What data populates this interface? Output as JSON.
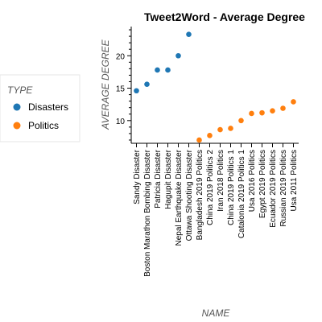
{
  "chart_data": {
    "type": "scatter",
    "title": "Tweet2Word - Average Degree",
    "xlabel": "NAME",
    "ylabel": "AVERAGE DEGREE",
    "ylim": [
      6.5,
      24.5
    ],
    "yticks": [
      10,
      15,
      20
    ],
    "grid": false,
    "legend": {
      "title": "TYPE",
      "placement": "left"
    },
    "categories": [
      "Sandy Disaster",
      "Boston Marathon Bombing Disaster",
      "Patricia Disaster",
      "Hagupit Disaster",
      "Nepal Earthquake Disaster",
      "Ottawa Shooting Disaster",
      "Bangladesh 2019 Politics",
      "China 2019 Politics 2",
      "Iran 2018 Politics",
      "China 2019 Politics 1",
      "Catalonia 2019 Politics 1",
      "Usa 2016 Politics",
      "Egypt 2019 Politics",
      "Ecuador 2019 Politics",
      "Russian 2019 Politics",
      "Usa 2011 Politics"
    ],
    "series": [
      {
        "name": "Disasters",
        "color": "#1f77b4",
        "points": [
          {
            "x": "Sandy Disaster",
            "y": 14.6
          },
          {
            "x": "Boston Marathon Bombing Disaster",
            "y": 15.6
          },
          {
            "x": "Patricia Disaster",
            "y": 17.8
          },
          {
            "x": "Hagupit Disaster",
            "y": 17.8
          },
          {
            "x": "Nepal Earthquake Disaster",
            "y": 20.0
          },
          {
            "x": "Ottawa Shooting Disaster",
            "y": 23.3
          }
        ]
      },
      {
        "name": "Politics",
        "color": "#ff7f0e",
        "points": [
          {
            "x": "Bangladesh 2019 Politics",
            "y": 7.0
          },
          {
            "x": "China 2019 Politics 2",
            "y": 7.7
          },
          {
            "x": "Iran 2018 Politics",
            "y": 8.6
          },
          {
            "x": "China 2019 Politics 1",
            "y": 8.8
          },
          {
            "x": "Catalonia 2019 Politics 1",
            "y": 10.0
          },
          {
            "x": "Usa 2016 Politics",
            "y": 11.1
          },
          {
            "x": "Egypt 2019 Politics",
            "y": 11.2
          },
          {
            "x": "Ecuador 2019 Politics",
            "y": 11.5
          },
          {
            "x": "Russian 2019 Politics",
            "y": 11.9
          },
          {
            "x": "Usa 2011 Politics",
            "y": 12.9
          }
        ]
      }
    ]
  }
}
